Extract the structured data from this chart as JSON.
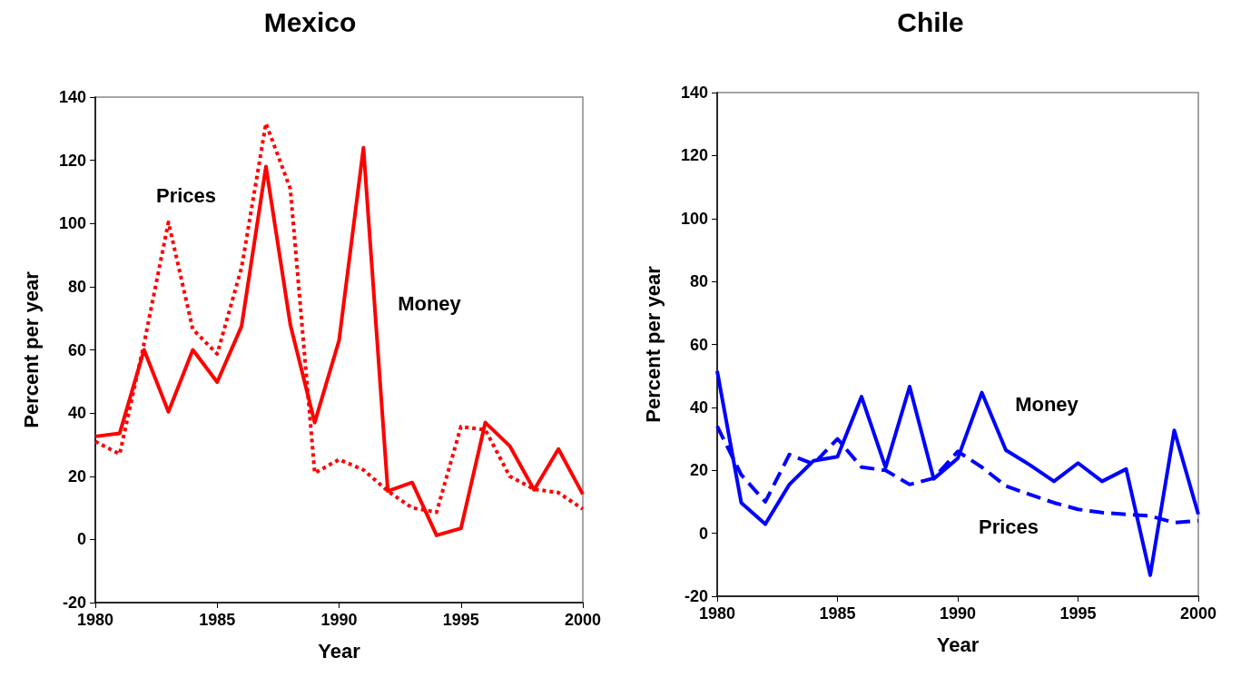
{
  "chart_data": [
    {
      "type": "line",
      "title": "Mexico",
      "xlabel": "Year",
      "ylabel": "Percent per year",
      "x": [
        1980,
        1981,
        1982,
        1983,
        1984,
        1985,
        1986,
        1987,
        1988,
        1989,
        1990,
        1991,
        1992,
        1993,
        1994,
        1995,
        1996,
        1997,
        1998,
        1999,
        2000
      ],
      "series": [
        {
          "color": "#ff0000",
          "line_style": "solid",
          "values": [
            32.6,
            33.6,
            60,
            40.4,
            60,
            49.8,
            67.5,
            118,
            68,
            37,
            63,
            124,
            15.3,
            18,
            1.3,
            3.5,
            37,
            29.6,
            15.7,
            28.6,
            14.3
          ]
        },
        {
          "color": "#ff0000",
          "line_style": "dotted",
          "values": [
            31,
            27,
            62,
            100.4,
            66.5,
            58.7,
            86,
            131.7,
            111,
            21,
            25.3,
            22,
            15.3,
            10,
            8.6,
            35.7,
            34.7,
            20,
            15.9,
            14.8,
            9.6
          ]
        }
      ],
      "annotations": [
        "Prices",
        "Money"
      ],
      "xlim": [
        1980,
        2000
      ],
      "xticks": [
        1980,
        1985,
        1990,
        1995,
        2000
      ],
      "ylim": [
        -20,
        140
      ],
      "yticks": [
        -20,
        0,
        20,
        40,
        60,
        80,
        100,
        120,
        140
      ],
      "grid": false,
      "marker": "none"
    },
    {
      "type": "line",
      "title": "Chile",
      "xlabel": "Year",
      "ylabel": "Percent per year",
      "x": [
        1980,
        1981,
        1982,
        1983,
        1984,
        1985,
        1986,
        1987,
        1988,
        1989,
        1990,
        1991,
        1992,
        1993,
        1994,
        1995,
        1996,
        1997,
        1998,
        1999,
        2000
      ],
      "series": [
        {
          "color": "#0000ff",
          "line_style": "solid",
          "values": [
            51.5,
            9.7,
            2.9,
            15.5,
            23,
            24.3,
            43.4,
            20.9,
            46.6,
            17.3,
            23.8,
            44.7,
            26.4,
            21.7,
            16.5,
            22.3,
            16.5,
            20.4,
            -13.3,
            32.7,
            6
          ]
        },
        {
          "color": "#0000ff",
          "line_style": "dashed",
          "values": [
            34,
            18.6,
            10,
            25,
            22,
            30,
            21,
            20,
            15.5,
            17.5,
            26,
            21,
            15,
            12.3,
            9.7,
            7.6,
            6.6,
            6,
            5.5,
            3.4,
            4
          ]
        }
      ],
      "annotations": [
        "Money",
        "Prices"
      ],
      "xlim": [
        1980,
        2000
      ],
      "xticks": [
        1980,
        1985,
        1990,
        1995,
        2000
      ],
      "ylim": [
        -20,
        140
      ],
      "yticks": [
        -20,
        0,
        20,
        40,
        60,
        80,
        100,
        120,
        140
      ],
      "grid": false,
      "marker": "none"
    }
  ]
}
